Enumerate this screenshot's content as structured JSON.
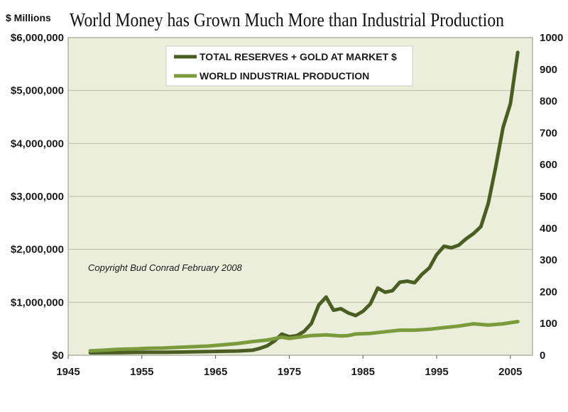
{
  "chart_data": {
    "type": "line",
    "title": "World Money has Grown Much More than Industrial Production",
    "ylabel": "$ Millions",
    "xlim": [
      1945,
      2008
    ],
    "xticks": [
      1945,
      1955,
      1965,
      1975,
      1985,
      1995,
      2005
    ],
    "ylim": [
      0,
      6000000
    ],
    "yticks": [
      "$0",
      "$1,000,000",
      "$2,000,000",
      "$3,000,000",
      "$4,000,000",
      "$5,000,000",
      "$6,000,000"
    ],
    "y2lim": [
      0,
      1000
    ],
    "y2ticks": [
      "0",
      "100",
      "200",
      "300",
      "400",
      "500",
      "600",
      "700",
      "800",
      "900",
      "1000"
    ],
    "grid": true,
    "legend_position": "top-center",
    "annotation": "Copyright Bud Conrad February 2008",
    "colors": {
      "plot_background": "#eaeedb",
      "reserves": "#4a5e23",
      "production": "#7a9a3c",
      "grid": "#b9bda6"
    },
    "series": [
      {
        "name": "TOTAL RESERVES + GOLD AT MARKET $",
        "axis": "left",
        "x": [
          1948,
          1950,
          1952,
          1954,
          1956,
          1958,
          1960,
          1962,
          1964,
          1966,
          1968,
          1970,
          1971,
          1972,
          1973,
          1974,
          1975,
          1976,
          1977,
          1978,
          1979,
          1980,
          1981,
          1982,
          1983,
          1984,
          1985,
          1986,
          1987,
          1988,
          1989,
          1990,
          1991,
          1992,
          1993,
          1994,
          1995,
          1996,
          1997,
          1998,
          1999,
          2000,
          2001,
          2002,
          2003,
          2004,
          2005,
          2006
        ],
        "values": [
          47000,
          48000,
          50000,
          55000,
          57000,
          58000,
          60000,
          65000,
          70000,
          75000,
          80000,
          95000,
          130000,
          180000,
          270000,
          400000,
          350000,
          370000,
          450000,
          600000,
          950000,
          1100000,
          850000,
          880000,
          800000,
          750000,
          830000,
          970000,
          1270000,
          1190000,
          1220000,
          1380000,
          1400000,
          1370000,
          1530000,
          1650000,
          1900000,
          2060000,
          2030000,
          2080000,
          2200000,
          2300000,
          2430000,
          2870000,
          3550000,
          4300000,
          4750000,
          5720000
        ]
      },
      {
        "name": "WORLD INDUSTRIAL PRODUCTION",
        "axis": "right",
        "x": [
          1948,
          1950,
          1952,
          1954,
          1956,
          1958,
          1960,
          1962,
          1964,
          1966,
          1968,
          1970,
          1972,
          1974,
          1975,
          1976,
          1978,
          1980,
          1982,
          1983,
          1984,
          1986,
          1988,
          1990,
          1992,
          1994,
          1996,
          1998,
          2000,
          2002,
          2004,
          2006
        ],
        "values": [
          14,
          16,
          19,
          20,
          22,
          23,
          25,
          27,
          29,
          33,
          37,
          43,
          48,
          57,
          53,
          56,
          62,
          64,
          61,
          62,
          67,
          69,
          74,
          79,
          79,
          82,
          87,
          92,
          99,
          95,
          99,
          106
        ]
      }
    ]
  }
}
